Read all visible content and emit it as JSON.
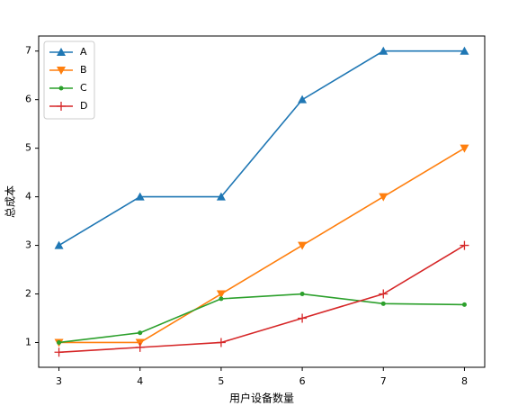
{
  "chart_data": {
    "type": "line",
    "x_label": "用户设备数量",
    "y_label": "总成本",
    "x": [
      3,
      4,
      5,
      6,
      7,
      8
    ],
    "series": [
      {
        "name": "A",
        "color": "#1f77b4",
        "marker": "triangle-up",
        "values": [
          3,
          4,
          4,
          6,
          7,
          7
        ]
      },
      {
        "name": "B",
        "color": "#ff7f0e",
        "marker": "triangle-down",
        "values": [
          1,
          1,
          2,
          3,
          4,
          5
        ]
      },
      {
        "name": "C",
        "color": "#2ca02c",
        "marker": "circle",
        "values": [
          1,
          1.2,
          1.9,
          2,
          1.8,
          1.78
        ]
      },
      {
        "name": "D",
        "color": "#d62728",
        "marker": "plus",
        "values": [
          0.8,
          0.9,
          1,
          1.5,
          2,
          3
        ]
      }
    ],
    "xlim": [
      2.75,
      8.25
    ],
    "ylim": [
      0.49,
      7.31
    ],
    "xticks": [
      3,
      4,
      5,
      6,
      7,
      8
    ],
    "yticks": [
      1,
      2,
      3,
      4,
      5,
      6,
      7
    ],
    "legend": "upper left"
  }
}
